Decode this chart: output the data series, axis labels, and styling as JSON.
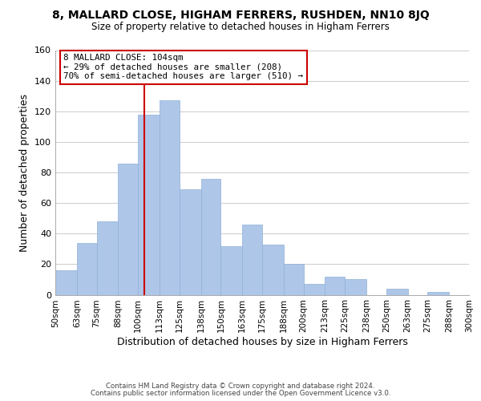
{
  "title": "8, MALLARD CLOSE, HIGHAM FERRERS, RUSHDEN, NN10 8JQ",
  "subtitle": "Size of property relative to detached houses in Higham Ferrers",
  "xlabel": "Distribution of detached houses by size in Higham Ferrers",
  "ylabel": "Number of detached properties",
  "footer_line1": "Contains HM Land Registry data © Crown copyright and database right 2024.",
  "footer_line2": "Contains public sector information licensed under the Open Government Licence v3.0.",
  "bin_labels": [
    "50sqm",
    "63sqm",
    "75sqm",
    "88sqm",
    "100sqm",
    "113sqm",
    "125sqm",
    "138sqm",
    "150sqm",
    "163sqm",
    "175sqm",
    "188sqm",
    "200sqm",
    "213sqm",
    "225sqm",
    "238sqm",
    "250sqm",
    "263sqm",
    "275sqm",
    "288sqm",
    "300sqm"
  ],
  "bin_edges": [
    50,
    63,
    75,
    88,
    100,
    113,
    125,
    138,
    150,
    163,
    175,
    188,
    200,
    213,
    225,
    238,
    250,
    263,
    275,
    288,
    300
  ],
  "bar_heights": [
    16,
    34,
    48,
    86,
    118,
    127,
    69,
    76,
    32,
    46,
    33,
    20,
    7,
    12,
    10,
    0,
    4,
    0,
    2,
    0
  ],
  "bar_color": "#aec6e8",
  "bar_edge_color": "#8fb0d8",
  "vline_x": 104,
  "vline_color": "#cc0000",
  "annotation_title": "8 MALLARD CLOSE: 104sqm",
  "annotation_line1": "← 29% of detached houses are smaller (208)",
  "annotation_line2": "70% of semi-detached houses are larger (510) →",
  "annotation_box_facecolor": "#ffffff",
  "annotation_box_edgecolor": "#cc0000",
  "ylim": [
    0,
    160
  ],
  "yticks": [
    0,
    20,
    40,
    60,
    80,
    100,
    120,
    140,
    160
  ],
  "grid_color": "#cccccc",
  "fig_bg_color": "#ffffff",
  "axes_bg_color": "#ffffff"
}
